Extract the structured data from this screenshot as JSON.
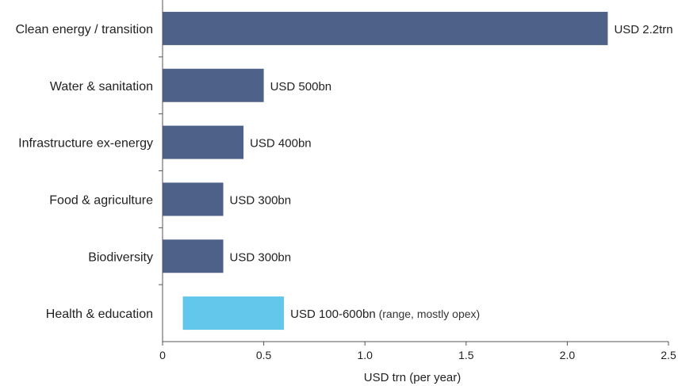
{
  "chart_data": {
    "type": "bar",
    "orientation": "horizontal",
    "xlabel": "USD trn (per year)",
    "xlim": [
      0,
      2.5
    ],
    "xticks": [
      0,
      0.5,
      1.0,
      1.5,
      2.0,
      2.5
    ],
    "xtick_labels": [
      "0",
      "0.5",
      "1.0",
      "1.5",
      "2.0",
      "2.5"
    ],
    "grid": false,
    "bars": [
      {
        "category": "Clean energy / transition",
        "start": 0,
        "end": 2.2,
        "label": "USD 2.2trn",
        "note": "",
        "color": "#4e6189"
      },
      {
        "category": "Water & sanitation",
        "start": 0,
        "end": 0.5,
        "label": "USD 500bn",
        "note": "",
        "color": "#4e6189"
      },
      {
        "category": "Infrastructure ex-energy",
        "start": 0,
        "end": 0.4,
        "label": "USD 400bn",
        "note": "",
        "color": "#4e6189"
      },
      {
        "category": "Food & agriculture",
        "start": 0,
        "end": 0.3,
        "label": "USD 300bn",
        "note": "",
        "color": "#4e6189"
      },
      {
        "category": "Biodiversity",
        "start": 0,
        "end": 0.3,
        "label": "USD 300bn",
        "note": "",
        "color": "#4e6189"
      },
      {
        "category": "Health & education",
        "start": 0.1,
        "end": 0.6,
        "label": "USD 100-600bn",
        "note": "(range, mostly opex)",
        "color": "#63c7ec"
      }
    ]
  }
}
